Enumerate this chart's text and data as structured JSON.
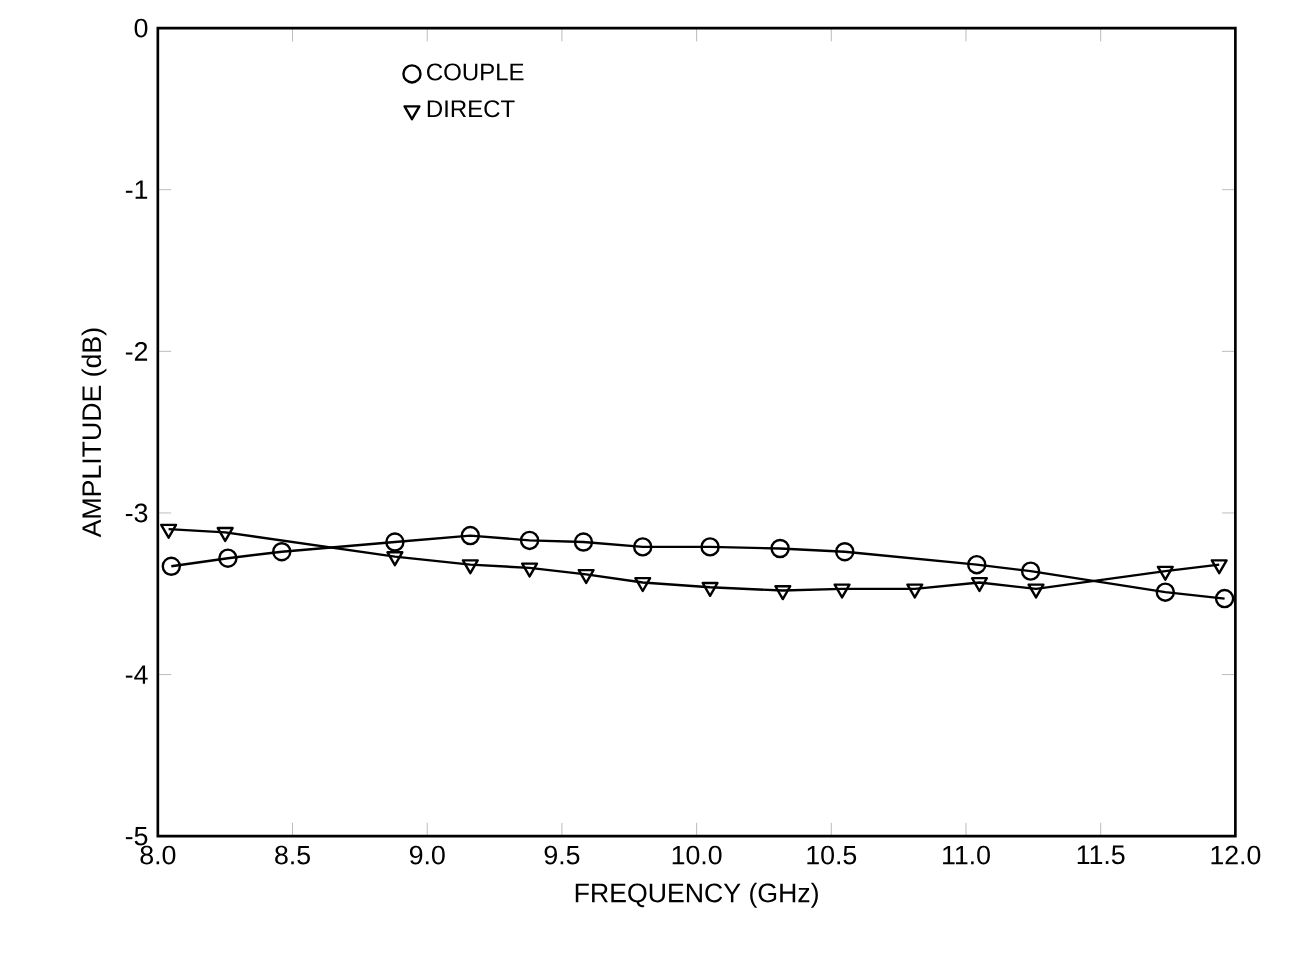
{
  "chart_data": {
    "type": "line",
    "xlabel": "FREQUENCY (GHz)",
    "ylabel": "AMPLITUDE (dB)",
    "xlim": [
      8,
      12
    ],
    "ylim": [
      -5,
      0
    ],
    "xticks": [
      {
        "value": 8,
        "label": "8.0"
      },
      {
        "value": 8.5,
        "label": "8.5"
      },
      {
        "value": 9,
        "label": "9.0"
      },
      {
        "value": 9.5,
        "label": "9.5"
      },
      {
        "value": 10,
        "label": "10.0"
      },
      {
        "value": 10.5,
        "label": "10.5"
      },
      {
        "value": 11,
        "label": "11.0"
      },
      {
        "value": 11.5,
        "label": "11.5"
      },
      {
        "value": 12,
        "label": "12.0"
      }
    ],
    "yticks": [
      -5,
      -4,
      -3,
      -2,
      -1,
      0
    ],
    "legend": "top left",
    "grid": false,
    "line_style": "solid",
    "series": [
      {
        "name": "COUPLE",
        "color": "#000000",
        "marker": "circle",
        "x": [
          8.05,
          8.26,
          8.46,
          8.88,
          9.16,
          9.38,
          9.58,
          9.8,
          10.05,
          10.31,
          10.55,
          11.04,
          11.24,
          11.74,
          11.96
        ],
        "values": [
          -3.33,
          -3.28,
          -3.24,
          -3.18,
          -3.14,
          -3.17,
          -3.18,
          -3.21,
          -3.21,
          -3.22,
          -3.24,
          -3.32,
          -3.36,
          -3.49,
          -3.53
        ]
      },
      {
        "name": "DIRECT",
        "color": "#000000",
        "marker": "triangle",
        "x": [
          8.04,
          8.25,
          8.88,
          9.16,
          9.38,
          9.59,
          9.8,
          10.05,
          10.32,
          10.54,
          10.81,
          11.05,
          11.26,
          11.74,
          11.94
        ],
        "values": [
          -3.1,
          -3.12,
          -3.27,
          -3.32,
          -3.34,
          -3.38,
          -3.43,
          -3.46,
          -3.48,
          -3.47,
          -3.47,
          -3.43,
          -3.47,
          -3.36,
          -3.32
        ]
      }
    ]
  }
}
